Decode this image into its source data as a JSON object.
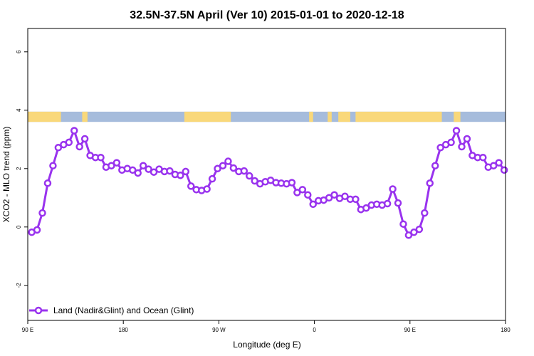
{
  "chart_data": {
    "type": "line",
    "title": "32.5N-37.5N April (Ver 10)   2015-01-01 to 2020-12-18",
    "xlabel": "Longitude (deg E)",
    "ylabel": "XCO2 - MLO trend (ppm)",
    "xlim": [
      90,
      450
    ],
    "ylim": [
      -3.2,
      6.8
    ],
    "x_ticks": [
      {
        "value": 90,
        "label": "90 E"
      },
      {
        "value": 162,
        "label": "180"
      },
      {
        "value": 234,
        "label": "90 W"
      },
      {
        "value": 306,
        "label": "0"
      },
      {
        "value": 378,
        "label": "90 E"
      },
      {
        "value": 450,
        "label": "180"
      }
    ],
    "y_ticks": [
      {
        "value": -2,
        "label": "-2"
      },
      {
        "value": 0,
        "label": "0"
      },
      {
        "value": 2,
        "label": "2"
      },
      {
        "value": 4,
        "label": "4"
      },
      {
        "value": 6,
        "label": "6"
      }
    ],
    "legend": {
      "position": "bottom-left"
    },
    "land_ocean_band": {
      "y_range": [
        3.6,
        3.95
      ],
      "ocean_color": "#a6bcdc",
      "land_color": "#f9d87a",
      "land_segments": [
        [
          90,
          115
        ],
        [
          131,
          135
        ],
        [
          208,
          243
        ],
        [
          302,
          305
        ],
        [
          316,
          319
        ],
        [
          324,
          333
        ],
        [
          337,
          402
        ],
        [
          411,
          416
        ]
      ]
    },
    "series": [
      {
        "name": "Land (Nadir&Glint) and Ocean (Glint)",
        "color": "#9933ee",
        "x": [
          93,
          97,
          101,
          105,
          109,
          113,
          117,
          121,
          125,
          129,
          133,
          137,
          141,
          145,
          149,
          153,
          157,
          161,
          165,
          169,
          173,
          177,
          181,
          185,
          189,
          193,
          197,
          201,
          205,
          209,
          213,
          217,
          221,
          225,
          229,
          233,
          237,
          241,
          245,
          249,
          253,
          257,
          261,
          265,
          269,
          273,
          277,
          281,
          285,
          289,
          293,
          297,
          301,
          305,
          309,
          313,
          317,
          321,
          325,
          329,
          333,
          337,
          341,
          345,
          349,
          353,
          357,
          361,
          365,
          369,
          373,
          377,
          381,
          385,
          389,
          393,
          397,
          401,
          405,
          409,
          413,
          417,
          421,
          425,
          429,
          433,
          437,
          441,
          445,
          449
        ],
        "values": [
          -0.18,
          -0.1,
          0.48,
          1.5,
          2.1,
          2.72,
          2.82,
          2.9,
          3.3,
          2.75,
          3.02,
          2.45,
          2.38,
          2.38,
          2.05,
          2.1,
          2.2,
          1.95,
          2.0,
          1.95,
          1.85,
          2.1,
          1.98,
          1.88,
          1.98,
          1.9,
          1.92,
          1.8,
          1.77,
          1.9,
          1.4,
          1.28,
          1.25,
          1.3,
          1.65,
          2.0,
          2.1,
          2.25,
          2.02,
          1.9,
          1.92,
          1.75,
          1.58,
          1.48,
          1.55,
          1.6,
          1.52,
          1.5,
          1.48,
          1.52,
          1.18,
          1.28,
          1.1,
          0.78,
          0.9,
          0.92,
          1.0,
          1.1,
          0.98,
          1.05,
          0.95,
          0.95,
          0.6,
          0.65,
          0.75,
          0.78,
          0.75,
          0.8,
          1.3,
          0.82,
          0.1,
          -0.28,
          -0.18,
          -0.08,
          0.48,
          1.5,
          2.1,
          2.72,
          2.82,
          2.9,
          3.3,
          2.75,
          3.02,
          2.45,
          2.38,
          2.38,
          2.05,
          2.1,
          2.2,
          1.95
        ]
      }
    ]
  }
}
